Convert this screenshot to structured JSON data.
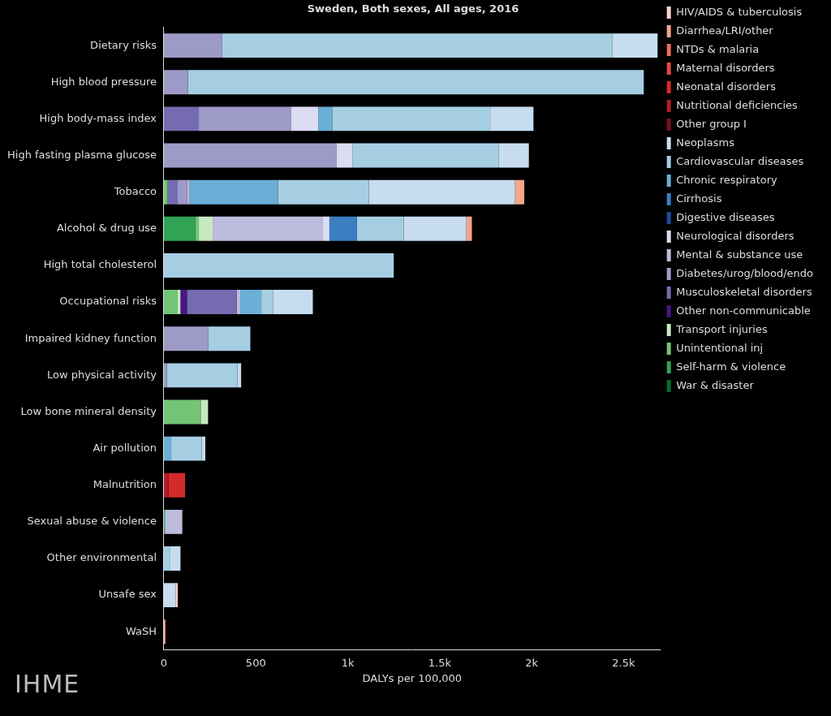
{
  "chart_data": {
    "type": "bar",
    "title": "Sweden, Both sexes, All ages, 2016",
    "xlabel": "DALYs per 100,000",
    "orientation": "horizontal",
    "stacked": true,
    "grid": false,
    "legend": "right",
    "annotations": [
      "IHME"
    ],
    "xlim": [
      0,
      2700
    ],
    "xticks": [
      0,
      500,
      {
        "value": 1000,
        "label": "1k"
      },
      {
        "value": 1500,
        "label": "1.5k"
      },
      {
        "value": 2000,
        "label": "2k"
      },
      {
        "value": 2500,
        "label": "2.5k"
      }
    ],
    "categories": [
      "Dietary risks",
      "High blood pressure",
      "High body-mass index",
      "High fasting plasma glucose",
      "Tobacco",
      "Alcohol & drug use",
      "High total cholesterol",
      "Occupational risks",
      "Impaired kidney function",
      "Low physical activity",
      "Low bone mineral density",
      "Air pollution",
      "Malnutrition",
      "Sexual abuse & violence",
      "Other environmental",
      "Unsafe sex",
      "WaSH"
    ],
    "series": [
      {
        "name": "HIV/AIDS & tuberculosis",
        "color": "#f6d5c8",
        "values": [
          0,
          0,
          0,
          0,
          0,
          0,
          0,
          0,
          0,
          0,
          0,
          0,
          0,
          0,
          0,
          10,
          0
        ]
      },
      {
        "name": "Diarrhea/LRI/other",
        "color": "#f4a58a",
        "values": [
          0,
          0,
          0,
          0,
          50,
          30,
          0,
          0,
          0,
          0,
          0,
          0,
          0,
          0,
          0,
          0,
          8
        ]
      },
      {
        "name": "NTDs & malaria",
        "color": "#e8705a",
        "values": [
          0,
          0,
          0,
          0,
          0,
          0,
          0,
          0,
          0,
          0,
          0,
          0,
          0,
          0,
          0,
          0,
          0
        ]
      },
      {
        "name": "Maternal disorders",
        "color": "#e04a3a",
        "values": [
          0,
          0,
          0,
          0,
          0,
          0,
          0,
          0,
          0,
          0,
          0,
          0,
          0,
          0,
          0,
          0,
          0
        ]
      },
      {
        "name": "Neonatal disorders",
        "color": "#d42a2a",
        "values": [
          0,
          0,
          0,
          0,
          0,
          0,
          0,
          0,
          0,
          0,
          0,
          0,
          90,
          0,
          0,
          0,
          0
        ]
      },
      {
        "name": "Nutritional deficiencies",
        "color": "#b01c2a",
        "values": [
          0,
          0,
          0,
          0,
          0,
          0,
          0,
          0,
          0,
          0,
          0,
          0,
          25,
          0,
          0,
          0,
          0
        ]
      },
      {
        "name": "Other group I",
        "color": "#7a1020",
        "values": [
          0,
          0,
          0,
          0,
          0,
          0,
          0,
          0,
          0,
          0,
          0,
          0,
          0,
          0,
          0,
          0,
          0
        ]
      },
      {
        "name": "Neoplasms",
        "color": "#c7dcef",
        "values": [
          245,
          0,
          235,
          165,
          795,
          340,
          0,
          215,
          0,
          20,
          0,
          20,
          0,
          0,
          55,
          65,
          0
        ]
      },
      {
        "name": "Cardiovascular diseases",
        "color": "#a6cee3",
        "values": [
          2125,
          2480,
          860,
          795,
          495,
          255,
          1250,
          65,
          230,
          385,
          0,
          165,
          0,
          0,
          35,
          0,
          0
        ]
      },
      {
        "name": "Chronic respiratory",
        "color": "#6baed6",
        "values": [
          0,
          0,
          75,
          0,
          480,
          0,
          0,
          115,
          0,
          0,
          0,
          40,
          0,
          0,
          0,
          0,
          0
        ]
      },
      {
        "name": "Cirrhosis",
        "color": "#3a7fc0",
        "values": [
          0,
          0,
          0,
          0,
          0,
          150,
          0,
          0,
          0,
          0,
          0,
          0,
          0,
          0,
          0,
          0,
          0
        ]
      },
      {
        "name": "Digestive diseases",
        "color": "#1c4b9a",
        "values": [
          0,
          0,
          0,
          0,
          0,
          0,
          0,
          0,
          0,
          0,
          0,
          0,
          0,
          0,
          0,
          0,
          0
        ]
      },
      {
        "name": "Neurological disorders",
        "color": "#dcdcf0",
        "values": [
          0,
          0,
          150,
          85,
          0,
          35,
          0,
          0,
          0,
          0,
          0,
          0,
          0,
          0,
          0,
          0,
          0
        ]
      },
      {
        "name": "Mental & substance use",
        "color": "#bcbddc",
        "values": [
          0,
          0,
          0,
          0,
          15,
          600,
          0,
          20,
          0,
          0,
          0,
          0,
          0,
          95,
          0,
          0,
          0
        ]
      },
      {
        "name": "Diabetes/urog/blood/endo",
        "color": "#9e9ac8",
        "values": [
          315,
          130,
          500,
          940,
          50,
          0,
          0,
          0,
          240,
          15,
          0,
          0,
          0,
          0,
          0,
          0,
          0
        ]
      },
      {
        "name": "Musculoskeletal disorders",
        "color": "#756bb1",
        "values": [
          0,
          0,
          190,
          0,
          55,
          0,
          0,
          270,
          0,
          0,
          0,
          0,
          0,
          0,
          0,
          0,
          0
        ]
      },
      {
        "name": "Other non-communicable",
        "color": "#4a1486",
        "values": [
          0,
          0,
          0,
          0,
          0,
          0,
          0,
          35,
          0,
          0,
          0,
          0,
          0,
          0,
          0,
          0,
          0
        ]
      },
      {
        "name": "Transport injuries",
        "color": "#c7e9c0",
        "values": [
          0,
          0,
          0,
          0,
          0,
          75,
          0,
          15,
          0,
          0,
          40,
          0,
          0,
          0,
          0,
          0,
          0
        ]
      },
      {
        "name": "Unintentional inj",
        "color": "#74c476",
        "values": [
          0,
          0,
          0,
          0,
          20,
          20,
          0,
          75,
          0,
          0,
          200,
          0,
          0,
          0,
          0,
          0,
          0
        ]
      },
      {
        "name": "Self-harm & violence",
        "color": "#31a354",
        "values": [
          0,
          0,
          0,
          0,
          0,
          170,
          0,
          0,
          0,
          0,
          0,
          0,
          0,
          5,
          0,
          0,
          0
        ]
      },
      {
        "name": "War & disaster",
        "color": "#006d2c",
        "values": [
          0,
          0,
          0,
          0,
          0,
          0,
          0,
          0,
          0,
          0,
          0,
          0,
          0,
          0,
          0,
          0,
          0
        ]
      }
    ]
  }
}
